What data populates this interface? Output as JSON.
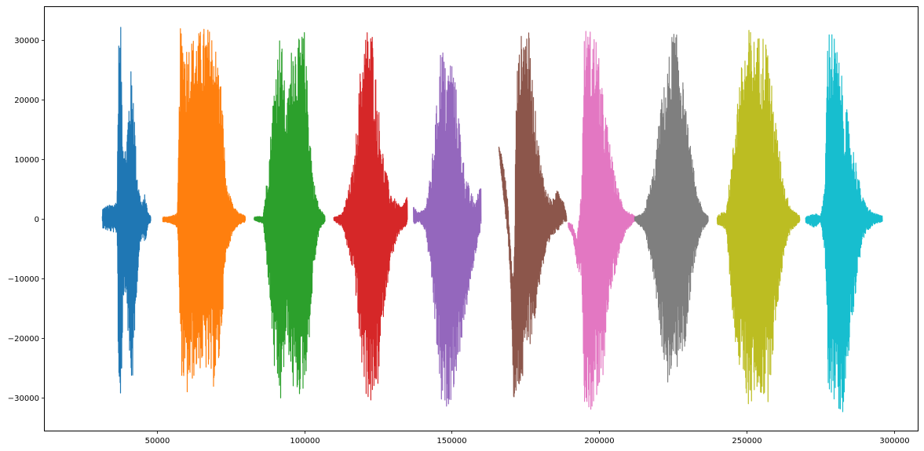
{
  "chart_data": {
    "type": "line",
    "title": "",
    "xlabel": "",
    "ylabel": "",
    "xlim": [
      12000,
      308000
    ],
    "ylim": [
      -35500,
      35500
    ],
    "x_ticks": [
      50000,
      100000,
      150000,
      200000,
      250000,
      300000
    ],
    "x_tick_labels": [
      "50000",
      "100000",
      "150000",
      "200000",
      "250000",
      "300000"
    ],
    "y_ticks": [
      -30000,
      -20000,
      -10000,
      0,
      10000,
      20000,
      30000
    ],
    "y_tick_labels": [
      "−30000",
      "−20000",
      "−10000",
      "0",
      "10000",
      "20000",
      "30000"
    ],
    "grid": false,
    "legend": "none",
    "series": [
      {
        "color": "#1f77b4",
        "x_range": [
          31500,
          48000
        ],
        "envelope": [
          [
            31500,
            1800,
            -1500
          ],
          [
            33000,
            2200,
            -2000
          ],
          [
            35000,
            2500,
            -2200
          ],
          [
            36500,
            3000,
            -2500
          ],
          [
            37000,
            30000,
            -31000
          ],
          [
            37800,
            32300,
            -32500
          ],
          [
            38500,
            15000,
            -14000
          ],
          [
            39500,
            12000,
            -12000
          ],
          [
            41000,
            25300,
            -29000
          ],
          [
            42000,
            24000,
            -27000
          ],
          [
            43000,
            10000,
            -13000
          ],
          [
            44000,
            5000,
            -6000
          ],
          [
            45000,
            2500,
            -3000
          ],
          [
            46000,
            4300,
            -4000
          ],
          [
            47000,
            1000,
            -1000
          ],
          [
            48000,
            500,
            -500
          ]
        ]
      },
      {
        "color": "#ff7f0e",
        "x_range": [
          52000,
          80000
        ],
        "envelope": [
          [
            52000,
            300,
            -500
          ],
          [
            55000,
            500,
            -800
          ],
          [
            57000,
            1000,
            -1500
          ],
          [
            58000,
            32300,
            -25500
          ],
          [
            60000,
            30000,
            -30500
          ],
          [
            63000,
            31000,
            -26000
          ],
          [
            66000,
            32300,
            -25000
          ],
          [
            69000,
            32000,
            -28700
          ],
          [
            71000,
            26000,
            -25000
          ],
          [
            72000,
            22000,
            -18000
          ],
          [
            73500,
            6000,
            -6000
          ],
          [
            76000,
            2000,
            -2000
          ],
          [
            78000,
            1000,
            -1000
          ],
          [
            80000,
            500,
            -500
          ]
        ]
      },
      {
        "color": "#2ca02c",
        "x_range": [
          83000,
          107000
        ],
        "envelope": [
          [
            83000,
            300,
            -300
          ],
          [
            86000,
            500,
            -800
          ],
          [
            88000,
            10000,
            -12000
          ],
          [
            90000,
            25000,
            -27500
          ],
          [
            92000,
            32300,
            -31700
          ],
          [
            94000,
            18000,
            -20000
          ],
          [
            96000,
            31000,
            -29000
          ],
          [
            98000,
            30000,
            -30000
          ],
          [
            100000,
            32000,
            -29000
          ],
          [
            102000,
            15000,
            -18000
          ],
          [
            103000,
            7000,
            -9000
          ],
          [
            105000,
            2000,
            -2000
          ],
          [
            107000,
            500,
            -500
          ]
        ]
      },
      {
        "color": "#d62728",
        "x_range": [
          110000,
          135000
        ],
        "envelope": [
          [
            110000,
            300,
            -300
          ],
          [
            113000,
            1000,
            -1500
          ],
          [
            115000,
            5000,
            -6000
          ],
          [
            117000,
            10000,
            -10000
          ],
          [
            119000,
            25500,
            -23500
          ],
          [
            121000,
            32300,
            -30000
          ],
          [
            123000,
            32000,
            -32000
          ],
          [
            125000,
            20000,
            -28000
          ],
          [
            127000,
            10000,
            -15000
          ],
          [
            129000,
            5000,
            -8000
          ],
          [
            131000,
            3000,
            -4000
          ],
          [
            133000,
            2000,
            -2000
          ],
          [
            135000,
            4000,
            -1000
          ]
        ]
      },
      {
        "color": "#9467bd",
        "x_range": [
          137000,
          160000
        ],
        "envelope": [
          [
            137000,
            2000,
            -1000
          ],
          [
            139000,
            1000,
            -500
          ],
          [
            141000,
            2000,
            -2000
          ],
          [
            143000,
            8000,
            -10000
          ],
          [
            145000,
            20000,
            -23000
          ],
          [
            146500,
            31300,
            -32300
          ],
          [
            148000,
            25000,
            -32000
          ],
          [
            150000,
            28000,
            -30000
          ],
          [
            152000,
            20000,
            -25000
          ],
          [
            154000,
            10000,
            -18000
          ],
          [
            156000,
            5000,
            -12000
          ],
          [
            158000,
            3000,
            -6000
          ],
          [
            160000,
            6000,
            -1000
          ]
        ]
      },
      {
        "color": "#8c564b",
        "x_range": [
          166000,
          189000
        ],
        "envelope": [
          [
            166000,
            12200,
            11000
          ],
          [
            167500,
            10000,
            3000
          ],
          [
            169000,
            3000,
            -3000
          ],
          [
            170000,
            -5000,
            -12000
          ],
          [
            171000,
            -10000,
            -32500
          ],
          [
            172000,
            25000,
            -30000
          ],
          [
            174000,
            32500,
            -28000
          ],
          [
            176000,
            32000,
            -22000
          ],
          [
            178000,
            20000,
            -18000
          ],
          [
            180000,
            10000,
            -10000
          ],
          [
            182000,
            5000,
            -6000
          ],
          [
            184000,
            3000,
            -3000
          ],
          [
            186000,
            5000,
            -2000
          ],
          [
            188000,
            3000,
            -500
          ],
          [
            189000,
            500,
            -500
          ]
        ]
      },
      {
        "color": "#e377c2",
        "x_range": [
          189500,
          212000
        ],
        "envelope": [
          [
            189500,
            -500,
            -1500
          ],
          [
            191000,
            -1000,
            -3000
          ],
          [
            192500,
            -3000,
            -8200
          ],
          [
            194000,
            5000,
            -10000
          ],
          [
            195000,
            32200,
            -32500
          ],
          [
            197000,
            32000,
            -32500
          ],
          [
            199000,
            31000,
            -32000
          ],
          [
            201000,
            22000,
            -28000
          ],
          [
            203000,
            15000,
            -15000
          ],
          [
            205000,
            8000,
            -10000
          ],
          [
            207000,
            4000,
            -5000
          ],
          [
            209000,
            1500,
            -2000
          ],
          [
            212000,
            500,
            -500
          ]
        ]
      },
      {
        "color": "#7f7f7f",
        "x_range": [
          212000,
          237000
        ],
        "envelope": [
          [
            212000,
            300,
            -300
          ],
          [
            215000,
            1000,
            -2000
          ],
          [
            217000,
            5000,
            -6000
          ],
          [
            219000,
            10000,
            -12000
          ],
          [
            221000,
            20000,
            -21000
          ],
          [
            223000,
            25000,
            -28000
          ],
          [
            225000,
            32400,
            -26000
          ],
          [
            227000,
            30000,
            -25000
          ],
          [
            229000,
            20000,
            -22000
          ],
          [
            231000,
            12000,
            -12000
          ],
          [
            233000,
            5000,
            -5000
          ],
          [
            235000,
            1500,
            -2000
          ],
          [
            237000,
            500,
            -500
          ]
        ]
      },
      {
        "color": "#bcbd22",
        "x_range": [
          240000,
          268000
        ],
        "envelope": [
          [
            240000,
            500,
            -1000
          ],
          [
            243000,
            1500,
            -2000
          ],
          [
            245000,
            10000,
            -15000
          ],
          [
            247000,
            22000,
            -25000
          ],
          [
            249000,
            27800,
            -28000
          ],
          [
            251000,
            32400,
            -32500
          ],
          [
            253000,
            30000,
            -29000
          ],
          [
            255000,
            32000,
            -30000
          ],
          [
            257000,
            30000,
            -31500
          ],
          [
            259000,
            20000,
            -22000
          ],
          [
            261000,
            12000,
            -12000
          ],
          [
            263000,
            5000,
            -5000
          ],
          [
            265000,
            2000,
            -2000
          ],
          [
            268000,
            500,
            -500
          ]
        ]
      },
      {
        "color": "#17becf",
        "x_range": [
          270000,
          296000
        ],
        "envelope": [
          [
            270000,
            300,
            -700
          ],
          [
            273000,
            1000,
            -1500
          ],
          [
            275000,
            500,
            -500
          ],
          [
            276500,
            5000,
            -6000
          ],
          [
            277500,
            32000,
            -28500
          ],
          [
            279000,
            32300,
            -30000
          ],
          [
            281000,
            28000,
            -32000
          ],
          [
            283000,
            21500,
            -32500
          ],
          [
            285000,
            15000,
            -20000
          ],
          [
            287000,
            10000,
            -12000
          ],
          [
            289000,
            4000,
            -4000
          ],
          [
            291000,
            2000,
            -2000
          ],
          [
            293000,
            1000,
            -1000
          ],
          [
            296000,
            500,
            -500
          ]
        ]
      }
    ]
  }
}
